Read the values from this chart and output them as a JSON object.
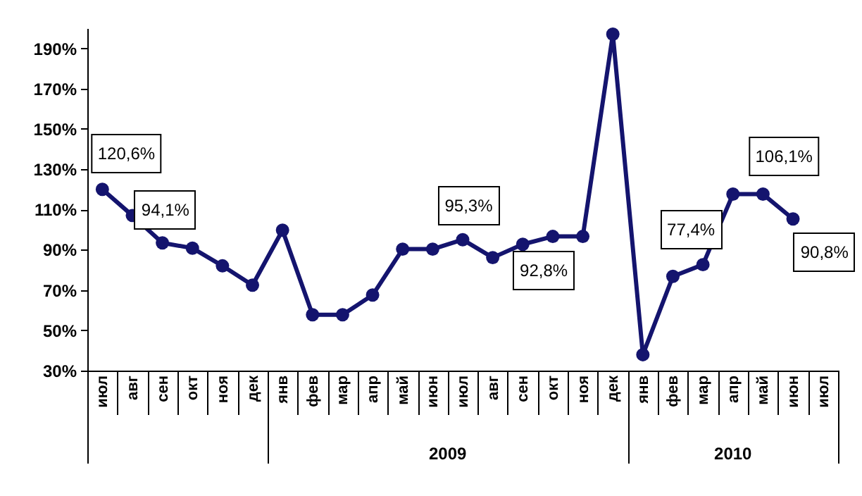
{
  "chart_data": {
    "type": "line",
    "categories": [
      "июл",
      "авг",
      "сен",
      "окт",
      "ноя",
      "дек",
      "янв",
      "фев",
      "мар",
      "апр",
      "май",
      "июн",
      "июл",
      "авг",
      "сен",
      "окт",
      "ноя",
      "дек",
      "янв",
      "фев",
      "мар",
      "апр",
      "май",
      "июн",
      "июл"
    ],
    "series": [
      {
        "color": "#14146e",
        "values": [
          120,
          107,
          93.4,
          90.8,
          82,
          72.4,
          99.7,
          57.7,
          57.7,
          67.5,
          90.3,
          90.3,
          95,
          86.1,
          92.7,
          96.6,
          96.6,
          197,
          37.9,
          76.8,
          82.6,
          117.6,
          117.6,
          105.3,
          null
        ]
      }
    ],
    "marker": "circle",
    "line_style": "solid",
    "ylim": [
      30,
      200
    ],
    "yticks": [
      {
        "value": 30,
        "label": "30%"
      },
      {
        "value": 50,
        "label": "50%"
      },
      {
        "value": 70,
        "label": "70%"
      },
      {
        "value": 90,
        "label": "90%"
      },
      {
        "value": 110,
        "label": "110%"
      },
      {
        "value": 130,
        "label": "130%"
      },
      {
        "value": 150,
        "label": "150%"
      },
      {
        "value": 170,
        "label": "170%"
      },
      {
        "value": 190,
        "label": "190%"
      }
    ],
    "annotations": [
      "120,6%",
      "94,1%",
      "95,3%",
      "92,8%",
      "77,4%",
      "106,1%",
      "90,8%",
      "2009",
      "2010"
    ]
  }
}
